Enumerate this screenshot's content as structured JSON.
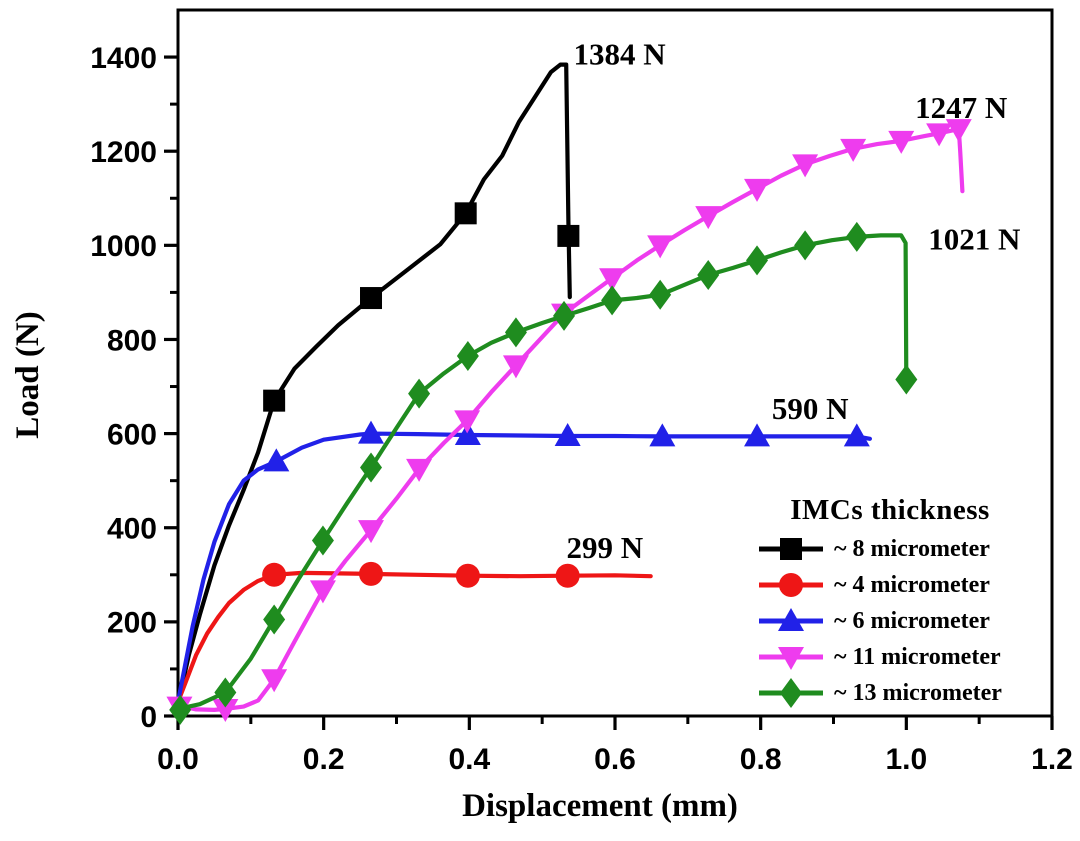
{
  "chart_data": {
    "type": "line",
    "title": "",
    "xlabel": "Displacement (mm)",
    "ylabel": "Load (N)",
    "xlim": [
      0,
      1.2
    ],
    "ylim": [
      0,
      1500
    ],
    "grid": false,
    "x_ticks": {
      "major": [
        0,
        0.2,
        0.4,
        0.6,
        0.8,
        1.0,
        1.2
      ],
      "labels": [
        "0.0",
        "0.2",
        "0.4",
        "0.6",
        "0.8",
        "1.0",
        "1.2"
      ],
      "minor": [
        0.1,
        0.3,
        0.5,
        0.7,
        0.9,
        1.1
      ]
    },
    "y_ticks": {
      "major": [
        0,
        200,
        400,
        600,
        800,
        1000,
        1200,
        1400
      ],
      "labels": [
        "0",
        "200",
        "400",
        "600",
        "800",
        "1000",
        "1200",
        "1400"
      ],
      "minor": [
        100,
        300,
        500,
        700,
        900,
        1100,
        1300
      ]
    },
    "legend": {
      "title": "IMCs thickness",
      "position": "lower-right"
    },
    "series": [
      {
        "name": "~ 8 micrometer",
        "color": "#000000",
        "marker": "square",
        "peak_label": "1384 N",
        "line": [
          [
            0,
            25
          ],
          [
            0.015,
            130
          ],
          [
            0.03,
            215
          ],
          [
            0.05,
            320
          ],
          [
            0.07,
            405
          ],
          [
            0.09,
            480
          ],
          [
            0.11,
            560
          ],
          [
            0.132,
            670
          ],
          [
            0.16,
            738
          ],
          [
            0.19,
            785
          ],
          [
            0.22,
            830
          ],
          [
            0.265,
            888
          ],
          [
            0.31,
            942
          ],
          [
            0.36,
            1002
          ],
          [
            0.395,
            1068
          ],
          [
            0.42,
            1140
          ],
          [
            0.445,
            1190
          ],
          [
            0.468,
            1262
          ],
          [
            0.49,
            1315
          ],
          [
            0.512,
            1368
          ],
          [
            0.525,
            1384
          ],
          [
            0.533,
            1384
          ],
          [
            0.536,
            1050
          ],
          [
            0.538,
            890
          ]
        ],
        "markers": [
          [
            0.132,
            670
          ],
          [
            0.265,
            888
          ],
          [
            0.395,
            1068
          ],
          [
            0.536,
            1020
          ]
        ]
      },
      {
        "name": "~ 4 micrometer",
        "color": "#ee1616",
        "marker": "circle",
        "peak_label": "299 N",
        "line": [
          [
            0,
            30
          ],
          [
            0.01,
            70
          ],
          [
            0.025,
            130
          ],
          [
            0.04,
            175
          ],
          [
            0.055,
            210
          ],
          [
            0.07,
            240
          ],
          [
            0.09,
            268
          ],
          [
            0.11,
            287
          ],
          [
            0.132,
            300
          ],
          [
            0.17,
            304
          ],
          [
            0.22,
            303
          ],
          [
            0.265,
            302
          ],
          [
            0.33,
            300
          ],
          [
            0.398,
            298
          ],
          [
            0.47,
            297
          ],
          [
            0.535,
            298
          ],
          [
            0.6,
            299
          ],
          [
            0.649,
            297
          ]
        ],
        "markers": [
          [
            0.132,
            300
          ],
          [
            0.265,
            302
          ],
          [
            0.398,
            298
          ],
          [
            0.535,
            298
          ]
        ]
      },
      {
        "name": "~ 6 micrometer",
        "color": "#2121e8",
        "marker": "triangle-up",
        "peak_label": "590 N",
        "line": [
          [
            0,
            30
          ],
          [
            0.01,
            110
          ],
          [
            0.02,
            190
          ],
          [
            0.035,
            290
          ],
          [
            0.05,
            370
          ],
          [
            0.07,
            450
          ],
          [
            0.09,
            500
          ],
          [
            0.11,
            524
          ],
          [
            0.135,
            541
          ],
          [
            0.17,
            570
          ],
          [
            0.2,
            587
          ],
          [
            0.25,
            598
          ],
          [
            0.265,
            600
          ],
          [
            0.33,
            599
          ],
          [
            0.398,
            597
          ],
          [
            0.47,
            596
          ],
          [
            0.535,
            595
          ],
          [
            0.6,
            595
          ],
          [
            0.665,
            594
          ],
          [
            0.73,
            594
          ],
          [
            0.795,
            594
          ],
          [
            0.865,
            594
          ],
          [
            0.932,
            594
          ],
          [
            0.95,
            589
          ]
        ],
        "markers": [
          [
            0.135,
            541
          ],
          [
            0.265,
            600
          ],
          [
            0.398,
            597
          ],
          [
            0.535,
            595
          ],
          [
            0.665,
            594
          ],
          [
            0.795,
            594
          ],
          [
            0.932,
            594
          ]
        ]
      },
      {
        "name": "~ 11 micrometer",
        "color": "#ee3cee",
        "marker": "triangle-down",
        "peak_label": "1247 N",
        "line": [
          [
            0,
            22
          ],
          [
            0.025,
            14
          ],
          [
            0.05,
            13
          ],
          [
            0.065,
            15
          ],
          [
            0.09,
            20
          ],
          [
            0.11,
            33
          ],
          [
            0.132,
            78
          ],
          [
            0.16,
            158
          ],
          [
            0.199,
            267
          ],
          [
            0.23,
            330
          ],
          [
            0.265,
            395
          ],
          [
            0.3,
            462
          ],
          [
            0.331,
            525
          ],
          [
            0.365,
            580
          ],
          [
            0.397,
            628
          ],
          [
            0.43,
            688
          ],
          [
            0.464,
            745
          ],
          [
            0.5,
            805
          ],
          [
            0.53,
            855
          ],
          [
            0.565,
            895
          ],
          [
            0.596,
            930
          ],
          [
            0.63,
            968
          ],
          [
            0.662,
            1000
          ],
          [
            0.695,
            1032
          ],
          [
            0.728,
            1062
          ],
          [
            0.762,
            1092
          ],
          [
            0.795,
            1120
          ],
          [
            0.828,
            1148
          ],
          [
            0.861,
            1172
          ],
          [
            0.895,
            1190
          ],
          [
            0.927,
            1205
          ],
          [
            0.96,
            1215
          ],
          [
            0.993,
            1222
          ],
          [
            1.025,
            1232
          ],
          [
            1.045,
            1238
          ],
          [
            1.072,
            1247
          ],
          [
            1.074,
            1200
          ],
          [
            1.077,
            1115
          ]
        ],
        "markers": [
          [
            0.002,
            20
          ],
          [
            0.065,
            15
          ],
          [
            0.132,
            78
          ],
          [
            0.199,
            267
          ],
          [
            0.265,
            395
          ],
          [
            0.331,
            525
          ],
          [
            0.397,
            628
          ],
          [
            0.464,
            745
          ],
          [
            0.53,
            855
          ],
          [
            0.596,
            930
          ],
          [
            0.662,
            1000
          ],
          [
            0.728,
            1062
          ],
          [
            0.795,
            1120
          ],
          [
            0.861,
            1172
          ],
          [
            0.927,
            1205
          ],
          [
            0.993,
            1222
          ],
          [
            1.045,
            1238
          ],
          [
            1.072,
            1247
          ]
        ]
      },
      {
        "name": "~ 13 micrometer",
        "color": "#1f8c1f",
        "marker": "diamond",
        "peak_label": "1021 N",
        "line": [
          [
            0,
            15
          ],
          [
            0.03,
            25
          ],
          [
            0.065,
            50
          ],
          [
            0.1,
            122
          ],
          [
            0.132,
            205
          ],
          [
            0.165,
            290
          ],
          [
            0.199,
            373
          ],
          [
            0.232,
            452
          ],
          [
            0.265,
            528
          ],
          [
            0.3,
            612
          ],
          [
            0.331,
            685
          ],
          [
            0.365,
            728
          ],
          [
            0.398,
            765
          ],
          [
            0.43,
            793
          ],
          [
            0.464,
            815
          ],
          [
            0.5,
            835
          ],
          [
            0.53,
            850
          ],
          [
            0.565,
            867
          ],
          [
            0.596,
            883
          ],
          [
            0.63,
            888
          ],
          [
            0.662,
            895
          ],
          [
            0.695,
            916
          ],
          [
            0.728,
            937
          ],
          [
            0.762,
            952
          ],
          [
            0.795,
            968
          ],
          [
            0.828,
            985
          ],
          [
            0.861,
            1000
          ],
          [
            0.898,
            1011
          ],
          [
            0.932,
            1018
          ],
          [
            0.965,
            1021
          ],
          [
            0.993,
            1021
          ],
          [
            0.999,
            1005
          ],
          [
            1.0,
            715
          ]
        ],
        "markers": [
          [
            0.003,
            13
          ],
          [
            0.065,
            50
          ],
          [
            0.132,
            205
          ],
          [
            0.199,
            373
          ],
          [
            0.265,
            528
          ],
          [
            0.331,
            685
          ],
          [
            0.398,
            765
          ],
          [
            0.464,
            815
          ],
          [
            0.53,
            850
          ],
          [
            0.596,
            883
          ],
          [
            0.662,
            895
          ],
          [
            0.728,
            937
          ],
          [
            0.795,
            968
          ],
          [
            0.861,
            1000
          ],
          [
            0.932,
            1018
          ],
          [
            1.0,
            715
          ]
        ]
      }
    ],
    "annotations": [
      {
        "label": "1384 N",
        "x": 0.543,
        "y": 1408,
        "align": "start"
      },
      {
        "label": "1247 N",
        "x": 1.012,
        "y": 1294,
        "align": "start"
      },
      {
        "label": "1021 N",
        "x": 1.03,
        "y": 1015,
        "align": "start"
      },
      {
        "label": "590 N",
        "x": 0.868,
        "y": 655,
        "align": "middle"
      },
      {
        "label": "299 N",
        "x": 0.586,
        "y": 360,
        "align": "middle"
      }
    ]
  }
}
